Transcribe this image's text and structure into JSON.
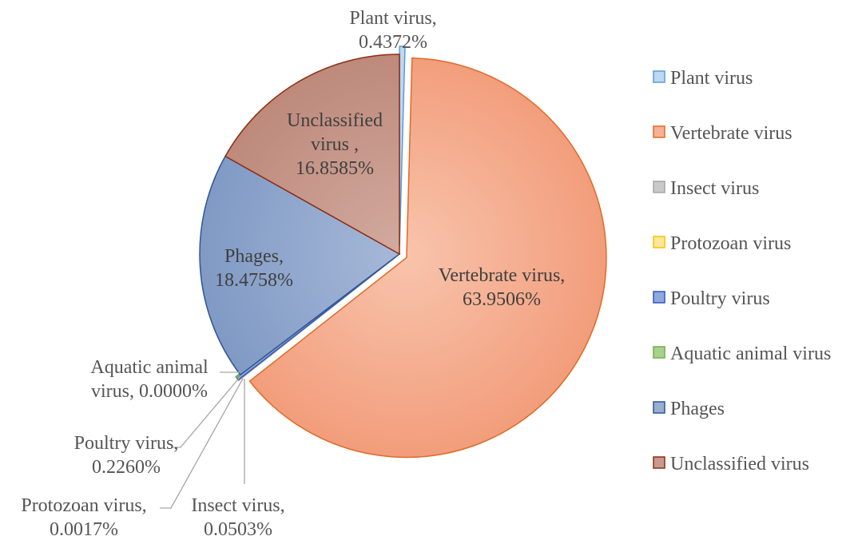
{
  "chart_data": {
    "type": "pie",
    "slices": [
      {
        "name": "Plant virus",
        "value": 0.4372,
        "label_lines": [
          "Plant virus,",
          "0.4372%"
        ],
        "fill": "#bcd9f2",
        "stroke": "#5b9bd5"
      },
      {
        "name": "Vertebrate virus",
        "value": 63.9506,
        "label_lines": [
          "Vertebrate virus,",
          "63.9506%"
        ],
        "fill": "#f5b196",
        "stroke": "#e06a25"
      },
      {
        "name": "Insect virus",
        "value": 0.0503,
        "label_lines": [
          "Insect virus,",
          "0.0503%"
        ],
        "fill": "#c9c9c9",
        "stroke": "#a5a5a5"
      },
      {
        "name": "Protozoan virus",
        "value": 0.0017,
        "label_lines": [
          "Protozoan virus,",
          "0.0017%"
        ],
        "fill": "#ffe699",
        "stroke": "#ffc000"
      },
      {
        "name": "Poultry virus",
        "value": 0.226,
        "label_lines": [
          "Poultry virus,",
          "0.2260%"
        ],
        "fill": "#8fa9dc",
        "stroke": "#2f55c4"
      },
      {
        "name": "Aquatic animal virus",
        "value": 0.0,
        "label_lines": [
          "Aquatic animal",
          "virus, 0.0000%"
        ],
        "fill": "#a9d18e",
        "stroke": "#70ad47"
      },
      {
        "name": "Phages",
        "value": 18.4758,
        "label_lines": [
          "Phages,",
          "18.4758%"
        ],
        "fill": "#9aaed0",
        "stroke": "#2e5597"
      },
      {
        "name": "Unclassified virus",
        "value": 16.8585,
        "label_lines": [
          "Unclassified",
          "virus ,",
          "16.8585%"
        ],
        "fill": "#c89a8f",
        "stroke": "#8e2d10"
      }
    ],
    "legend": {
      "placement": "right",
      "entries": [
        "Plant virus",
        "Vertebrate virus",
        "Insect virus",
        "Protozoan virus",
        "Poultry virus",
        "Aquatic animal virus",
        "Phages",
        "Unclassified virus"
      ]
    }
  }
}
